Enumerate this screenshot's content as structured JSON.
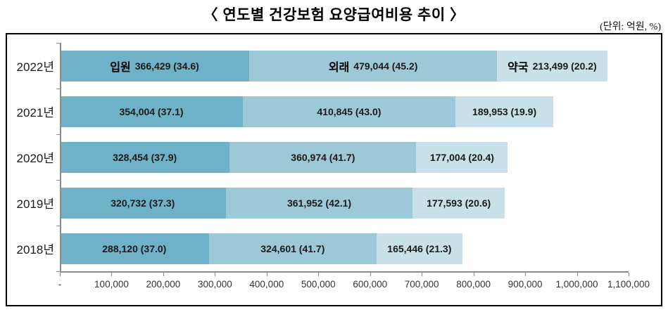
{
  "page": {
    "title_display": "〈 연도별 건강보험 요양급여비용 추이 〉",
    "unit_label": "(단위: 억원, %)"
  },
  "chart_data": {
    "type": "bar",
    "orientation": "horizontal",
    "stacked": true,
    "title": "연도별 건강보험 요양급여비용 추이",
    "unit": "억원, %",
    "categories": [
      "2022년",
      "2021년",
      "2020년",
      "2019년",
      "2018년"
    ],
    "series": [
      {
        "name": "입원",
        "color": "#6FB2C8",
        "values": [
          366429,
          354004,
          328454,
          320732,
          288120
        ],
        "percent": [
          34.6,
          37.1,
          37.9,
          37.3,
          37.0
        ]
      },
      {
        "name": "외래",
        "color": "#9CC8D8",
        "values": [
          479044,
          410845,
          360974,
          361952,
          324601
        ],
        "percent": [
          45.2,
          43.0,
          41.7,
          42.1,
          41.7
        ]
      },
      {
        "name": "약국",
        "color": "#C8E0E8",
        "values": [
          213499,
          189953,
          177004,
          177593,
          165446
        ],
        "percent": [
          20.2,
          19.9,
          20.4,
          20.6,
          21.3
        ]
      }
    ],
    "value_labels": [
      [
        "366,429 (34.6)",
        "479,044 (45.2)",
        "213,499 (20.2)"
      ],
      [
        "354,004 (37.1)",
        "410,845 (43.0)",
        "189,953 (19.9)"
      ],
      [
        "328,454 (37.9)",
        "360,974 (41.7)",
        "177,004 (20.4)"
      ],
      [
        "320,732 (37.3)",
        "361,952 (42.1)",
        "177,593 (20.6)"
      ],
      [
        "288,120 (37.0)",
        "324,601 (41.7)",
        "165,446 (21.3)"
      ]
    ],
    "series_names_shown_on_first_row_only": true,
    "xlim": [
      0,
      1100000
    ],
    "x_tick_labels": [
      "-",
      "100,000",
      "200,000",
      "300,000",
      "400,000",
      "500,000",
      "600,000",
      "700,000",
      "800,000",
      "900,000",
      "1,000,000",
      "1,100,000"
    ],
    "grid": false,
    "legend_position": "none",
    "axis_color": "#8c8c8c"
  }
}
